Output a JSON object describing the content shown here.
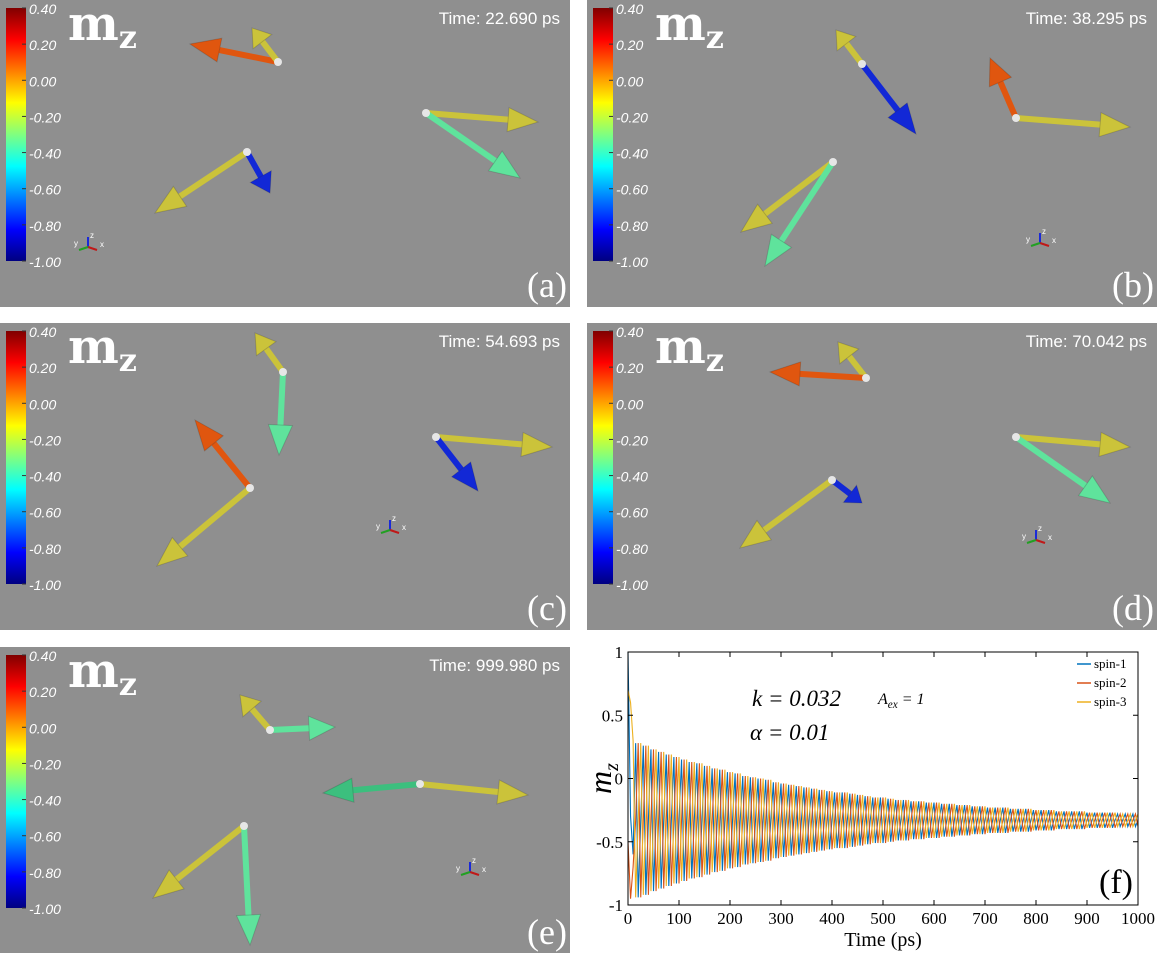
{
  "title": [
    "m",
    "z"
  ],
  "colorbar": {
    "lim": [
      -1,
      0.4
    ],
    "ticks": [
      {
        "value": 0.4,
        "label": "0.40"
      },
      {
        "value": 0.2,
        "label": "0.20"
      },
      {
        "value": 0,
        "label": "0.00"
      },
      {
        "value": -0.2,
        "label": "-0.20"
      },
      {
        "value": -0.4,
        "label": "-0.40"
      },
      {
        "value": -0.6,
        "label": "-0.60"
      },
      {
        "value": -0.8,
        "label": "-0.80"
      },
      {
        "value": -1,
        "label": "-1.00"
      }
    ]
  },
  "triad": [
    "x",
    "y",
    "z"
  ],
  "panels": [
    {
      "time": "Time: 22.690 ps",
      "label": "(a)"
    },
    {
      "time": "Time: 38.295 ps",
      "label": "(b)"
    },
    {
      "time": "Time: 54.693 ps",
      "label": "(c)"
    },
    {
      "time": "Time: 70.042 ps",
      "label": "(d)"
    },
    {
      "time": "Time: 999.980 ps",
      "label": "(e)"
    }
  ],
  "chart_data": {
    "type": "line",
    "label": "(f)",
    "xlabel": "Time (ps)",
    "ylabel": [
      "m",
      "z"
    ],
    "annotations": [
      [
        "k = 0.032"
      ],
      [
        "A",
        "ex",
        " = 1"
      ],
      [
        "α = 0.01"
      ]
    ],
    "legend": "upper right",
    "xlim": [
      0,
      1000
    ],
    "ylim": [
      -1,
      1
    ],
    "xticks": [
      0,
      100,
      200,
      300,
      400,
      500,
      600,
      700,
      800,
      900,
      1000
    ],
    "yticks": [
      -1,
      -0.5,
      0,
      0.5,
      1
    ],
    "x": [
      0,
      5,
      10,
      15,
      20,
      25,
      30,
      35,
      40,
      45,
      50,
      55,
      60,
      65,
      70,
      75,
      80,
      85,
      90,
      95,
      100,
      105,
      110,
      115,
      120,
      125,
      130,
      135,
      140,
      145,
      150,
      155,
      160,
      165,
      170,
      175,
      180,
      185,
      190,
      195,
      200,
      205,
      210,
      215,
      220,
      225,
      230,
      235,
      240,
      245,
      250,
      255,
      260,
      265,
      270,
      275,
      280,
      285,
      290,
      295,
      300,
      305,
      310,
      315,
      320,
      325,
      330,
      335,
      340,
      345,
      350,
      355,
      360,
      365,
      370,
      375,
      380,
      385,
      390,
      395,
      400,
      405,
      410,
      415,
      420,
      425,
      430,
      435,
      440,
      445,
      450,
      455,
      460,
      465,
      470,
      475,
      480,
      485,
      490,
      495,
      500,
      505,
      510,
      515,
      520,
      525,
      530,
      535,
      540,
      545,
      550,
      555,
      560,
      565,
      570,
      575,
      580,
      585,
      590,
      595,
      600,
      605,
      610,
      615,
      620,
      625,
      630,
      635,
      640,
      645,
      650,
      655,
      660,
      665,
      670,
      675,
      680,
      685,
      690,
      695,
      700,
      705,
      710,
      715,
      720,
      725,
      730,
      735,
      740,
      745,
      750,
      755,
      760,
      765,
      770,
      775,
      780,
      785,
      790,
      795,
      800,
      805,
      810,
      815,
      820,
      825,
      830,
      835,
      840,
      845,
      850,
      855,
      860,
      865,
      870,
      875,
      880,
      885,
      890,
      895,
      900,
      905,
      910,
      915,
      920,
      925,
      930,
      935,
      940,
      945,
      950,
      955,
      960,
      965,
      970,
      975,
      980,
      985,
      990,
      995,
      1000
    ],
    "series": [
      {
        "name": "spin-1",
        "color": "#0072bd",
        "values": [
          1,
          -0.3,
          -0.6,
          0.28,
          -0.94,
          -0.33,
          0.26,
          -0.92,
          -0.33,
          0.23,
          -0.89,
          -0.33,
          0.21,
          -0.87,
          -0.33,
          0.19,
          -0.85,
          -0.33,
          0.17,
          -0.83,
          -0.33,
          0.15,
          -0.81,
          -0.33,
          0.13,
          -0.79,
          -0.33,
          0.12,
          -0.78,
          -0.33,
          0.1,
          -0.76,
          -0.33,
          0.08,
          -0.74,
          -0.33,
          0.07,
          -0.73,
          -0.33,
          0.05,
          -0.71,
          -0.33,
          0.04,
          -0.7,
          -0.33,
          0.02,
          -0.68,
          -0.33,
          0.01,
          -0.67,
          -0.33,
          0,
          -0.66,
          -0.33,
          -0.01,
          -0.65,
          -0.33,
          -0.03,
          -0.63,
          -0.33,
          -0.04,
          -0.62,
          -0.33,
          -0.05,
          -0.61,
          -0.33,
          -0.06,
          -0.6,
          -0.33,
          -0.07,
          -0.59,
          -0.33,
          -0.08,
          -0.58,
          -0.33,
          -0.09,
          -0.57,
          -0.33,
          -0.1,
          -0.56,
          -0.33,
          -0.11,
          -0.55,
          -0.33,
          -0.11,
          -0.55,
          -0.33,
          -0.12,
          -0.54,
          -0.33,
          -0.13,
          -0.53,
          -0.33,
          -0.14,
          -0.52,
          -0.33,
          -0.15,
          -0.51,
          -0.33,
          -0.15,
          -0.51,
          -0.33,
          -0.16,
          -0.5,
          -0.33,
          -0.17,
          -0.49,
          -0.33,
          -0.17,
          -0.49,
          -0.33,
          -0.18,
          -0.48,
          -0.33,
          -0.18,
          -0.48,
          -0.33,
          -0.19,
          -0.47,
          -0.33,
          -0.19,
          -0.47,
          -0.33,
          -0.2,
          -0.46,
          -0.33,
          -0.2,
          -0.46,
          -0.33,
          -0.21,
          -0.45,
          -0.33,
          -0.21,
          -0.45,
          -0.33,
          -0.22,
          -0.44,
          -0.33,
          -0.22,
          -0.44,
          -0.33,
          -0.23,
          -0.43,
          -0.33,
          -0.23,
          -0.43,
          -0.33,
          -0.23,
          -0.43,
          -0.33,
          -0.24,
          -0.42,
          -0.33,
          -0.24,
          -0.42,
          -0.33,
          -0.24,
          -0.42,
          -0.33,
          -0.25,
          -0.41,
          -0.33,
          -0.25,
          -0.41,
          -0.33,
          -0.25,
          -0.41,
          -0.33,
          -0.26,
          -0.4,
          -0.33,
          -0.26,
          -0.4,
          -0.33,
          -0.26,
          -0.4,
          -0.33,
          -0.26,
          -0.4,
          -0.33,
          -0.27,
          -0.39,
          -0.33,
          -0.27,
          -0.39,
          -0.33,
          -0.27,
          -0.39,
          -0.33,
          -0.27,
          -0.39,
          -0.33,
          -0.28,
          -0.38,
          -0.33,
          -0.28,
          -0.38,
          -0.33,
          -0.28,
          -0.38,
          -0.33
        ]
      },
      {
        "name": "spin-2",
        "color": "#d95319",
        "values": [
          -0.5,
          -0.95,
          -0.7,
          -0.33,
          0.28,
          -0.94,
          -0.33,
          0.26,
          -0.92,
          -0.33,
          0.23,
          -0.89,
          -0.33,
          0.21,
          -0.87,
          -0.33,
          0.19,
          -0.85,
          -0.33,
          0.17,
          -0.83,
          -0.33,
          0.15,
          -0.81,
          -0.33,
          0.13,
          -0.79,
          -0.33,
          0.12,
          -0.78,
          -0.33,
          0.1,
          -0.76,
          -0.33,
          0.08,
          -0.74,
          -0.33,
          0.07,
          -0.73,
          -0.33,
          0.05,
          -0.71,
          -0.33,
          0.04,
          -0.7,
          -0.33,
          0.02,
          -0.68,
          -0.33,
          0.01,
          -0.67,
          -0.33,
          0,
          -0.66,
          -0.33,
          -0.01,
          -0.65,
          -0.33,
          -0.03,
          -0.63,
          -0.33,
          -0.04,
          -0.62,
          -0.33,
          -0.05,
          -0.61,
          -0.33,
          -0.06,
          -0.6,
          -0.33,
          -0.07,
          -0.59,
          -0.33,
          -0.08,
          -0.58,
          -0.33,
          -0.09,
          -0.57,
          -0.33,
          -0.1,
          -0.56,
          -0.33,
          -0.11,
          -0.55,
          -0.33,
          -0.11,
          -0.55,
          -0.33,
          -0.12,
          -0.54,
          -0.33,
          -0.13,
          -0.53,
          -0.33,
          -0.14,
          -0.52,
          -0.33,
          -0.15,
          -0.51,
          -0.33,
          -0.15,
          -0.51,
          -0.33,
          -0.16,
          -0.5,
          -0.33,
          -0.17,
          -0.49,
          -0.33,
          -0.17,
          -0.49,
          -0.33,
          -0.18,
          -0.48,
          -0.33,
          -0.18,
          -0.48,
          -0.33,
          -0.19,
          -0.47,
          -0.33,
          -0.19,
          -0.47,
          -0.33,
          -0.2,
          -0.46,
          -0.33,
          -0.2,
          -0.46,
          -0.33,
          -0.21,
          -0.45,
          -0.33,
          -0.21,
          -0.45,
          -0.33,
          -0.22,
          -0.44,
          -0.33,
          -0.22,
          -0.44,
          -0.33,
          -0.23,
          -0.43,
          -0.33,
          -0.23,
          -0.43,
          -0.33,
          -0.23,
          -0.43,
          -0.33,
          -0.24,
          -0.42,
          -0.33,
          -0.24,
          -0.42,
          -0.33,
          -0.24,
          -0.42,
          -0.33,
          -0.25,
          -0.41,
          -0.33,
          -0.25,
          -0.41,
          -0.33,
          -0.25,
          -0.41,
          -0.33,
          -0.26,
          -0.4,
          -0.33,
          -0.26,
          -0.4,
          -0.33,
          -0.26,
          -0.4,
          -0.33,
          -0.26,
          -0.4,
          -0.33,
          -0.27,
          -0.39,
          -0.33,
          -0.27,
          -0.39,
          -0.33,
          -0.27,
          -0.39,
          -0.33,
          -0.27,
          -0.39,
          -0.33,
          -0.28,
          -0.38,
          -0.33,
          -0.28,
          -0.38,
          -0.33,
          -0.28,
          -0.38
        ]
      },
      {
        "name": "spin-3",
        "color": "#edb120",
        "values": [
          0.7,
          0.6,
          0.3,
          -0.94,
          -0.33,
          0.28,
          -0.92,
          -0.33,
          0.26,
          -0.89,
          -0.33,
          0.23,
          -0.87,
          -0.33,
          0.21,
          -0.85,
          -0.33,
          0.19,
          -0.83,
          -0.33,
          0.17,
          -0.81,
          -0.33,
          0.15,
          -0.79,
          -0.33,
          0.13,
          -0.78,
          -0.33,
          0.12,
          -0.76,
          -0.33,
          0.1,
          -0.74,
          -0.33,
          0.08,
          -0.73,
          -0.33,
          0.07,
          -0.71,
          -0.33,
          0.05,
          -0.7,
          -0.33,
          0.04,
          -0.68,
          -0.33,
          0.02,
          -0.67,
          -0.33,
          0.01,
          -0.66,
          -0.33,
          0,
          -0.65,
          -0.33,
          -0.01,
          -0.63,
          -0.33,
          -0.03,
          -0.62,
          -0.33,
          -0.04,
          -0.61,
          -0.33,
          -0.05,
          -0.6,
          -0.33,
          -0.06,
          -0.59,
          -0.33,
          -0.07,
          -0.58,
          -0.33,
          -0.08,
          -0.57,
          -0.33,
          -0.09,
          -0.56,
          -0.33,
          -0.1,
          -0.55,
          -0.33,
          -0.11,
          -0.55,
          -0.33,
          -0.11,
          -0.54,
          -0.33,
          -0.12,
          -0.53,
          -0.33,
          -0.13,
          -0.52,
          -0.33,
          -0.14,
          -0.51,
          -0.33,
          -0.15,
          -0.51,
          -0.33,
          -0.15,
          -0.5,
          -0.33,
          -0.16,
          -0.49,
          -0.33,
          -0.17,
          -0.49,
          -0.33,
          -0.17,
          -0.48,
          -0.33,
          -0.18,
          -0.48,
          -0.33,
          -0.18,
          -0.47,
          -0.33,
          -0.19,
          -0.47,
          -0.33,
          -0.19,
          -0.46,
          -0.33,
          -0.2,
          -0.46,
          -0.33,
          -0.2,
          -0.45,
          -0.33,
          -0.21,
          -0.45,
          -0.33,
          -0.21,
          -0.44,
          -0.33,
          -0.22,
          -0.44,
          -0.33,
          -0.22,
          -0.43,
          -0.33,
          -0.23,
          -0.43,
          -0.33,
          -0.23,
          -0.43,
          -0.33,
          -0.23,
          -0.42,
          -0.33,
          -0.24,
          -0.42,
          -0.33,
          -0.24,
          -0.42,
          -0.33,
          -0.24,
          -0.41,
          -0.33,
          -0.25,
          -0.41,
          -0.33,
          -0.25,
          -0.41,
          -0.33,
          -0.25,
          -0.4,
          -0.33,
          -0.26,
          -0.4,
          -0.33,
          -0.26,
          -0.4,
          -0.33,
          -0.26,
          -0.4,
          -0.33,
          -0.26,
          -0.39,
          -0.33,
          -0.27,
          -0.39,
          -0.33,
          -0.27,
          -0.39,
          -0.33,
          -0.27,
          -0.39,
          -0.33,
          -0.27,
          -0.38,
          -0.33,
          -0.28,
          -0.38,
          -0.33,
          -0.28,
          -0.38,
          -0.33,
          -0.28
        ]
      }
    ]
  }
}
